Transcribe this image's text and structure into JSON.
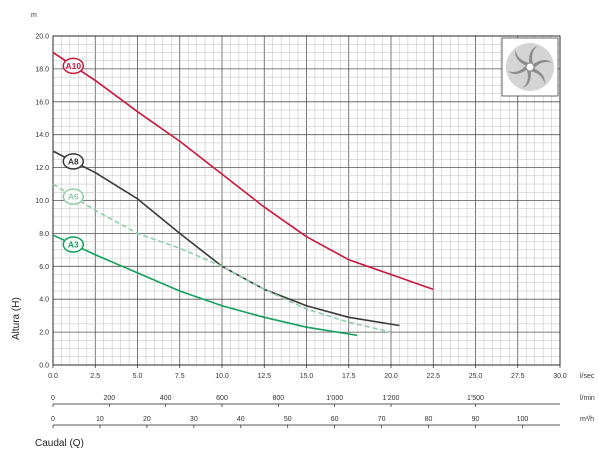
{
  "chart_data": {
    "type": "line",
    "y_unit": "m",
    "ylabel": "Altura (H)",
    "xlabel": "Caudal (Q)",
    "ylim": [
      0,
      20
    ],
    "yticks": [
      "0.0",
      "2.0",
      "4.0",
      "6.0",
      "8.0",
      "10.0",
      "12.0",
      "14.0",
      "16.0",
      "18.0",
      "20.0"
    ],
    "x_axes": [
      {
        "unit": "l/sec",
        "range": [
          0,
          30
        ],
        "ticks": [
          {
            "v": 0,
            "label": "0.0"
          },
          {
            "v": 2.5,
            "label": "2.5"
          },
          {
            "v": 5,
            "label": "5.0"
          },
          {
            "v": 7.5,
            "label": "7.5"
          },
          {
            "v": 10,
            "label": "10.0"
          },
          {
            "v": 12.5,
            "label": "12.5"
          },
          {
            "v": 15,
            "label": "15.0"
          },
          {
            "v": 17.5,
            "label": "17.5"
          },
          {
            "v": 20,
            "label": "20.0"
          },
          {
            "v": 22.5,
            "label": "22.5"
          },
          {
            "v": 25,
            "label": "25.0"
          },
          {
            "v": 27.5,
            "label": "27.5"
          },
          {
            "v": 30,
            "label": "30.0"
          }
        ]
      },
      {
        "unit": "l/min",
        "range": [
          0,
          1800
        ],
        "ticks": [
          {
            "v": 0,
            "label": "0"
          },
          {
            "v": 200,
            "label": "200"
          },
          {
            "v": 400,
            "label": "400"
          },
          {
            "v": 600,
            "label": "600"
          },
          {
            "v": 800,
            "label": "800"
          },
          {
            "v": 1000,
            "label": "1'000"
          },
          {
            "v": 1200,
            "label": "1'200"
          },
          {
            "v": 1500,
            "label": "1'500"
          }
        ]
      },
      {
        "unit": "m³/h",
        "range": [
          0,
          108
        ],
        "ticks": [
          {
            "v": 0,
            "label": "0"
          },
          {
            "v": 10,
            "label": "10"
          },
          {
            "v": 20,
            "label": "20"
          },
          {
            "v": 30,
            "label": "30"
          },
          {
            "v": 40,
            "label": "40"
          },
          {
            "v": 50,
            "label": "50"
          },
          {
            "v": 60,
            "label": "60"
          },
          {
            "v": 70,
            "label": "70"
          },
          {
            "v": 80,
            "label": "80"
          },
          {
            "v": 90,
            "label": "90"
          },
          {
            "v": 100,
            "label": "100"
          }
        ]
      }
    ],
    "series": [
      {
        "name": "A10",
        "color": "#c8163c",
        "dashed": false,
        "x": [
          0,
          2.5,
          5,
          7.5,
          10,
          12.5,
          15,
          17.5,
          20,
          22.5
        ],
        "y": [
          19.0,
          17.3,
          15.4,
          13.6,
          11.6,
          9.6,
          7.8,
          6.4,
          5.5,
          4.6
        ]
      },
      {
        "name": "A8",
        "color": "#3a3a3a",
        "dashed": false,
        "x": [
          0,
          2.5,
          5,
          7.5,
          10,
          12.5,
          15,
          17.5,
          20.5
        ],
        "y": [
          13.0,
          11.7,
          10.1,
          8.0,
          6.0,
          4.6,
          3.6,
          2.9,
          2.4
        ]
      },
      {
        "name": "A6",
        "color": "#8fd0a8",
        "dashed": true,
        "x": [
          0,
          2.5,
          5,
          7.5,
          10,
          12.5,
          15,
          17.5,
          20
        ],
        "y": [
          11.0,
          9.4,
          8.0,
          7.1,
          6.0,
          4.6,
          3.4,
          2.6,
          2.0
        ]
      },
      {
        "name": "A3",
        "color": "#12a05a",
        "dashed": false,
        "x": [
          0,
          2.5,
          5,
          7.5,
          10,
          12.5,
          15,
          18
        ],
        "y": [
          7.9,
          6.7,
          5.6,
          4.5,
          3.6,
          2.9,
          2.3,
          1.8
        ]
      }
    ],
    "grid": true,
    "logo_icon": "impeller-icon"
  }
}
